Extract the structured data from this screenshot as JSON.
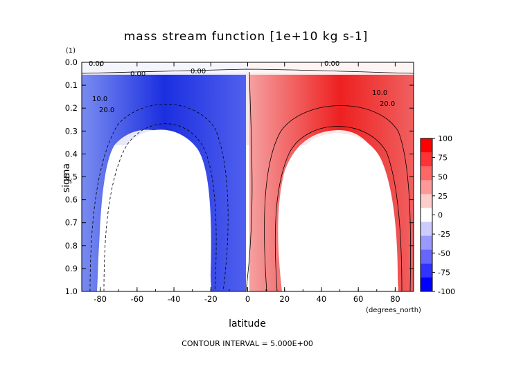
{
  "chart_data": {
    "type": "heatmap",
    "title": "mass stream function [1e+10 kg s-1]",
    "xlabel": "latitude",
    "ylabel": "sigma",
    "x_units": "(degrees_north)",
    "y_units": "(1)",
    "xlim": [
      -90,
      90
    ],
    "ylim": [
      1.0,
      0.0
    ],
    "x_ticks": [
      -80,
      -60,
      -40,
      -20,
      0,
      20,
      40,
      60,
      80
    ],
    "y_ticks": [
      "0.0",
      "0.1",
      "0.2",
      "0.3",
      "0.4",
      "0.5",
      "0.6",
      "0.7",
      "0.8",
      "0.9",
      "1.0"
    ],
    "colorbar": {
      "ticks": [
        "100",
        "75",
        "50",
        "25",
        "0",
        "-25",
        "-50",
        "-75",
        "-100"
      ],
      "colors": [
        "#ff0000",
        "#ff3333",
        "#ff6666",
        "#ff9999",
        "#ffcccc",
        "#ffffff",
        "#ccccff",
        "#9999ff",
        "#6666ff",
        "#3333ff",
        "#0000ff"
      ],
      "vmin": -100,
      "vmax": 100
    },
    "contour_labels": [
      "0.00",
      "0.00",
      "0.00",
      "0.00",
      "10.0",
      "20.0",
      "10.0",
      "20.0"
    ],
    "footer": "CONTOUR INTERVAL = 5.000E+00",
    "grid": false
  }
}
